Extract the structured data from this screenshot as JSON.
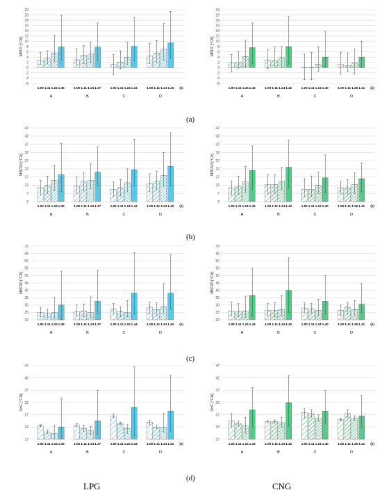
{
  "figure": {
    "panel_labels": [
      "(a)",
      "(b)",
      "(c)",
      "(d)"
    ],
    "column_labels": [
      "LPG",
      "CNG"
    ]
  },
  "colors": {
    "lpg": "#5bc8ea",
    "cng": "#57c98a",
    "error_bar": "#555555",
    "grid": "#d9d9d9"
  },
  "chart_data": [
    {
      "type": "bar",
      "fuel": "LPG",
      "row": "a",
      "ylabel": "MBF5 [°CA]",
      "ylim": [
        -6,
        22
      ],
      "yticks": [
        -6,
        -4,
        -2,
        0,
        2,
        4,
        6,
        8,
        10,
        12,
        14,
        16,
        18,
        20,
        22
      ],
      "groups": [
        {
          "name": "A",
          "lambda": [
            "1.00",
            "1.11",
            "1.24",
            "1.35"
          ],
          "values": [
            2.8,
            3.6,
            5.6,
            7.8
          ],
          "err_low": [
            1.2,
            1.4,
            2.2,
            3.0
          ],
          "err_high": [
            5.8,
            6.4,
            12.2,
            20.0
          ]
        },
        {
          "name": "B",
          "lambda": [
            "1.00",
            "1.11",
            "1.24",
            "1.37"
          ],
          "values": [
            3.0,
            4.6,
            5.3,
            7.8
          ],
          "err_low": [
            1.0,
            1.6,
            2.0,
            2.6
          ],
          "err_high": [
            7.2,
            8.4,
            9.6,
            17.0
          ]
        },
        {
          "name": "C",
          "lambda": [
            "1.00",
            "1.11",
            "1.24",
            "1.44"
          ],
          "values": [
            1.2,
            2.1,
            3.9,
            8.1
          ],
          "err_low": [
            -2.6,
            -0.4,
            1.0,
            2.6
          ],
          "err_high": [
            5.0,
            6.4,
            9.6,
            19.0
          ]
        },
        {
          "name": "D",
          "lambda": [
            "1.00",
            "1.11",
            "1.24",
            "1.43"
          ],
          "values": [
            4.4,
            5.6,
            7.0,
            9.4
          ],
          "err_low": [
            1.6,
            2.0,
            2.8,
            3.6
          ],
          "err_high": [
            9.2,
            10.2,
            16.8,
            21.4
          ]
        }
      ],
      "x_unit": "(λ)"
    },
    {
      "type": "bar",
      "fuel": "CNG",
      "row": "a",
      "ylabel": "MBF5 [°CA]",
      "ylim": [
        -6,
        22
      ],
      "yticks": [
        -6,
        -4,
        -2,
        0,
        2,
        4,
        6,
        8,
        10,
        12,
        14,
        16,
        18,
        20,
        22
      ],
      "groups": [
        {
          "name": "A",
          "lambda": [
            "1.00",
            "1.11",
            "1.24",
            "1.43"
          ],
          "values": [
            1.8,
            2.0,
            4.2,
            7.6
          ],
          "err_low": [
            -1.6,
            -0.2,
            0.4,
            1.4
          ],
          "err_high": [
            5.0,
            6.0,
            10.4,
            17.0
          ]
        },
        {
          "name": "B",
          "lambda": [
            "1.00",
            "1.11",
            "1.24",
            "1.42"
          ],
          "values": [
            2.8,
            2.6,
            3.8,
            8.0
          ],
          "err_low": [
            -0.4,
            0.0,
            0.2,
            1.4
          ],
          "err_high": [
            6.8,
            7.8,
            8.0,
            19.4
          ]
        },
        {
          "name": "C",
          "lambda": [
            "1.00",
            "1.11",
            "1.24",
            "1.40"
          ],
          "values": [
            0.2,
            0.0,
            1.3,
            4.0
          ],
          "err_low": [
            -4.6,
            -4.6,
            -1.4,
            0.4
          ],
          "err_high": [
            5.2,
            5.8,
            7.8,
            13.8
          ]
        },
        {
          "name": "D",
          "lambda": [
            "1.00",
            "1.11",
            "1.26",
            "1.41"
          ],
          "values": [
            1.2,
            0.8,
            1.8,
            4.0
          ],
          "err_low": [
            -2.4,
            -1.4,
            -2.4,
            0.0
          ],
          "err_high": [
            5.8,
            5.6,
            7.0,
            10.0
          ]
        }
      ],
      "x_unit": "(λ)"
    },
    {
      "type": "bar",
      "fuel": "LPG",
      "row": "b",
      "ylabel": "MBF50 [°CA]",
      "ylim": [
        2,
        47
      ],
      "yticks": [
        2,
        7,
        12,
        17,
        22,
        27,
        32,
        37,
        42,
        47
      ],
      "groups": [
        {
          "name": "A",
          "lambda": [
            "1.00",
            "1.11",
            "1.24",
            "1.35"
          ],
          "values": [
            10.5,
            12.0,
            15.0,
            18.5
          ],
          "err_low": [
            6.0,
            7.0,
            9.0,
            8.0
          ],
          "err_high": [
            15.0,
            17.5,
            24.0,
            37.5
          ]
        },
        {
          "name": "B",
          "lambda": [
            "1.00",
            "1.11",
            "1.24",
            "1.37"
          ],
          "values": [
            11.5,
            14.0,
            15.0,
            20.0
          ],
          "err_low": [
            7.0,
            8.5,
            10.0,
            11.5
          ],
          "err_high": [
            17.0,
            19.5,
            25.0,
            35.5
          ]
        },
        {
          "name": "C",
          "lambda": [
            "1.00",
            "1.11",
            "1.24",
            "1.44"
          ],
          "values": [
            9.5,
            10.5,
            13.5,
            21.5
          ],
          "err_low": [
            5.0,
            5.5,
            8.0,
            11.5
          ],
          "err_high": [
            14.0,
            15.5,
            22.0,
            40.0
          ]
        },
        {
          "name": "D",
          "lambda": [
            "1.00",
            "1.11",
            "1.24",
            "1.43"
          ],
          "values": [
            13.0,
            14.5,
            18.0,
            23.5
          ],
          "err_low": [
            8.0,
            9.5,
            11.5,
            12.0
          ],
          "err_high": [
            19.0,
            20.5,
            32.0,
            44.0
          ]
        }
      ],
      "x_unit": "(λ)"
    },
    {
      "type": "bar",
      "fuel": "CNG",
      "row": "b",
      "ylabel": "MBF50 [°CA]",
      "ylim": [
        2,
        47
      ],
      "yticks": [
        2,
        7,
        12,
        17,
        22,
        27,
        32,
        37,
        42,
        47
      ],
      "groups": [
        {
          "name": "A",
          "lambda": [
            "1.00",
            "1.11",
            "1.24",
            "1.43"
          ],
          "values": [
            10.5,
            11.0,
            14.0,
            21.0
          ],
          "err_low": [
            6.0,
            6.5,
            7.5,
            9.0
          ],
          "err_high": [
            14.5,
            17.5,
            23.5,
            36.0
          ]
        },
        {
          "name": "B",
          "lambda": [
            "1.00",
            "1.11",
            "1.24",
            "1.42"
          ],
          "values": [
            12.5,
            12.5,
            14.5,
            23.0
          ],
          "err_low": [
            7.0,
            7.0,
            9.0,
            10.5
          ],
          "err_high": [
            18.5,
            18.5,
            23.0,
            39.5
          ]
        },
        {
          "name": "C",
          "lambda": [
            "1.00",
            "1.11",
            "1.24",
            "1.40"
          ],
          "values": [
            9.5,
            9.5,
            12.0,
            16.5
          ],
          "err_low": [
            5.0,
            5.0,
            7.0,
            7.5
          ],
          "err_high": [
            16.0,
            17.5,
            20.0,
            30.5
          ]
        },
        {
          "name": "D",
          "lambda": [
            "1.00",
            "1.11",
            "1.26",
            "1.41"
          ],
          "values": [
            10.5,
            10.5,
            12.5,
            16.0
          ],
          "err_low": [
            7.0,
            6.5,
            7.0,
            8.0
          ],
          "err_high": [
            14.0,
            15.5,
            19.5,
            25.5
          ]
        }
      ],
      "x_unit": "(λ)"
    },
    {
      "type": "bar",
      "fuel": "LPG",
      "row": "c",
      "ylabel": "MBF90 [°CA]",
      "ylim": [
        20,
        70
      ],
      "yticks": [
        20,
        25,
        30,
        35,
        40,
        45,
        50,
        55,
        60,
        65,
        70
      ],
      "groups": [
        {
          "name": "A",
          "lambda": [
            "1.00",
            "1.11",
            "1.24",
            "1.35"
          ],
          "values": [
            25.0,
            24.0,
            25.0,
            30.0
          ],
          "err_low": [
            22.0,
            21.5,
            21.0,
            20.0
          ],
          "err_high": [
            28.5,
            27.0,
            35.0,
            53.0
          ]
        },
        {
          "name": "B",
          "lambda": [
            "1.00",
            "1.11",
            "1.24",
            "1.37"
          ],
          "values": [
            25.5,
            26.0,
            25.0,
            32.5
          ],
          "err_low": [
            22.5,
            22.0,
            21.5,
            24.0
          ],
          "err_high": [
            30.0,
            30.5,
            35.5,
            53.5
          ]
        },
        {
          "name": "C",
          "lambda": [
            "1.00",
            "1.11",
            "1.24",
            "1.44"
          ],
          "values": [
            27.5,
            25.5,
            25.0,
            38.0
          ],
          "err_low": [
            24.5,
            22.0,
            22.0,
            24.0
          ],
          "err_high": [
            31.0,
            29.0,
            33.0,
            65.5
          ]
        },
        {
          "name": "D",
          "lambda": [
            "1.00",
            "1.11",
            "1.24",
            "1.43"
          ],
          "values": [
            28.5,
            27.0,
            29.0,
            38.0
          ],
          "err_low": [
            24.0,
            23.0,
            24.5,
            27.5
          ],
          "err_high": [
            32.0,
            31.5,
            44.5,
            64.0
          ]
        }
      ],
      "x_unit": "(λ)"
    },
    {
      "type": "bar",
      "fuel": "CNG",
      "row": "c",
      "ylabel": "MBF90 [°CA]",
      "ylim": [
        20,
        70
      ],
      "yticks": [
        20,
        25,
        30,
        35,
        40,
        45,
        50,
        55,
        60,
        65,
        70
      ],
      "groups": [
        {
          "name": "A",
          "lambda": [
            "1.00",
            "1.11",
            "1.24",
            "1.43"
          ],
          "values": [
            26.0,
            25.5,
            26.0,
            36.5
          ],
          "err_low": [
            22.5,
            22.0,
            21.5,
            22.5
          ],
          "err_high": [
            32.0,
            31.0,
            36.0,
            55.0
          ]
        },
        {
          "name": "B",
          "lambda": [
            "1.00",
            "1.11",
            "1.24",
            "1.42"
          ],
          "values": [
            26.5,
            26.5,
            27.0,
            40.0
          ],
          "err_low": [
            22.5,
            22.0,
            22.5,
            25.0
          ],
          "err_high": [
            31.0,
            31.5,
            36.5,
            62.0
          ]
        },
        {
          "name": "C",
          "lambda": [
            "1.00",
            "1.11",
            "1.24",
            "1.40"
          ],
          "values": [
            28.0,
            27.5,
            26.5,
            32.5
          ],
          "err_low": [
            25.0,
            24.5,
            22.5,
            24.0
          ],
          "err_high": [
            31.5,
            31.0,
            34.0,
            50.0
          ]
        },
        {
          "name": "D",
          "lambda": [
            "1.00",
            "1.11",
            "1.26",
            "1.41"
          ],
          "values": [
            26.5,
            28.5,
            27.0,
            30.5
          ],
          "err_low": [
            23.0,
            24.0,
            23.0,
            25.0
          ],
          "err_high": [
            30.0,
            31.5,
            33.0,
            44.5
          ]
        }
      ],
      "x_unit": "(λ)"
    },
    {
      "type": "bar",
      "fuel": "LPG",
      "row": "d",
      "ylabel": "DoC [°CA]",
      "ylim": [
        17,
        47
      ],
      "yticks": [
        17,
        22,
        27,
        32,
        37,
        42,
        47
      ],
      "groups": [
        {
          "name": "A",
          "lambda": [
            "1.00",
            "1.11",
            "1.24",
            "1.35"
          ],
          "values": [
            22.6,
            20.0,
            19.5,
            22.0
          ],
          "err_low": [
            22.2,
            19.4,
            17.5,
            17.5
          ],
          "err_high": [
            23.0,
            20.8,
            22.5,
            33.5
          ]
        },
        {
          "name": "B",
          "lambda": [
            "1.00",
            "1.11",
            "1.24",
            "1.37"
          ],
          "values": [
            22.8,
            21.5,
            20.5,
            24.5
          ],
          "err_low": [
            22.3,
            20.3,
            18.8,
            19.0
          ],
          "err_high": [
            23.3,
            22.8,
            22.3,
            37.0
          ]
        },
        {
          "name": "C",
          "lambda": [
            "1.00",
            "1.11",
            "1.24",
            "1.44"
          ],
          "values": [
            26.5,
            23.5,
            21.5,
            30.0
          ],
          "err_low": [
            25.8,
            23.0,
            19.5,
            18.5
          ],
          "err_high": [
            27.3,
            24.0,
            23.0,
            46.5
          ]
        },
        {
          "name": "D",
          "lambda": [
            "1.00",
            "1.11",
            "1.24",
            "1.43"
          ],
          "values": [
            24.0,
            22.0,
            22.0,
            28.5
          ],
          "err_low": [
            22.8,
            21.3,
            20.0,
            20.0
          ],
          "err_high": [
            24.8,
            22.7,
            27.5,
            43.0
          ]
        }
      ],
      "x_unit": "(λ)"
    },
    {
      "type": "bar",
      "fuel": "CNG",
      "row": "d",
      "ylabel": "DoC [°CA]",
      "ylim": [
        17,
        47
      ],
      "yticks": [
        17,
        22,
        27,
        32,
        37,
        42,
        47
      ],
      "groups": [
        {
          "name": "A",
          "lambda": [
            "1.00",
            "1.11",
            "1.24",
            "1.43"
          ],
          "values": [
            24.5,
            23.5,
            22.5,
            29.0
          ],
          "err_low": [
            22.0,
            22.5,
            19.5,
            22.0
          ],
          "err_high": [
            27.5,
            24.5,
            26.0,
            38.0
          ]
        },
        {
          "name": "B",
          "lambda": [
            "1.00",
            "1.11",
            "1.24",
            "1.42"
          ],
          "values": [
            24.2,
            24.3,
            23.8,
            32.0
          ],
          "err_low": [
            23.8,
            23.7,
            22.0,
            22.5
          ],
          "err_high": [
            24.7,
            24.9,
            26.0,
            43.0
          ]
        },
        {
          "name": "C",
          "lambda": [
            "1.00",
            "1.11",
            "1.24",
            "1.40"
          ],
          "values": [
            28.0,
            27.5,
            25.5,
            28.5
          ],
          "err_low": [
            25.5,
            26.0,
            24.5,
            23.5
          ],
          "err_high": [
            29.5,
            29.0,
            27.0,
            37.0
          ]
        },
        {
          "name": "D",
          "lambda": [
            "1.00",
            "1.11",
            "1.26",
            "1.41"
          ],
          "values": [
            25.0,
            27.5,
            25.5,
            26.5
          ],
          "err_low": [
            24.5,
            26.0,
            24.8,
            22.0
          ],
          "err_high": [
            25.5,
            29.0,
            26.5,
            35.0
          ]
        }
      ],
      "x_unit": "(λ)"
    }
  ]
}
